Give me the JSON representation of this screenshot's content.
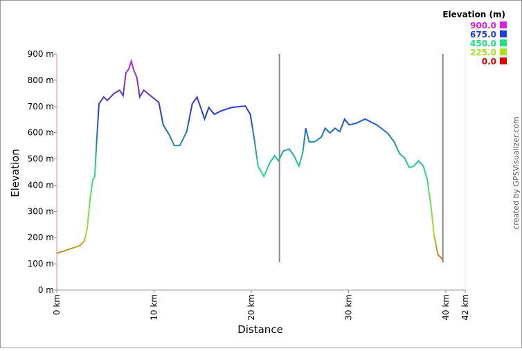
{
  "chart_data": {
    "type": "line",
    "x_label": "Distance",
    "y_label": "Elevation",
    "credit": "created by GPSVisualizer.com",
    "legend_title": "Elevation (m)",
    "legend": [
      {
        "value": 900,
        "label": "900.0",
        "color": "#e020e0"
      },
      {
        "value": 675,
        "label": "675.0",
        "color": "#1c3ce0"
      },
      {
        "value": 450,
        "label": "450.0",
        "color": "#20e080"
      },
      {
        "value": 225,
        "label": "225.0",
        "color": "#a8e020"
      },
      {
        "value": 0,
        "label": "0.0",
        "color": "#e00000"
      }
    ],
    "xlim": [
      0,
      42
    ],
    "ylim": [
      0,
      900
    ],
    "xticks": [
      {
        "value": 0,
        "label": "0 km"
      },
      {
        "value": 10,
        "label": "10 km"
      },
      {
        "value": 20,
        "label": "20 km"
      },
      {
        "value": 30,
        "label": "30 km"
      },
      {
        "value": 40,
        "label": "40 km"
      },
      {
        "value": 42,
        "label": "42 km"
      }
    ],
    "yticks": [
      {
        "value": 0,
        "label": "0 m"
      },
      {
        "value": 100,
        "label": "100 m"
      },
      {
        "value": 200,
        "label": "200 m"
      },
      {
        "value": 300,
        "label": "300 m"
      },
      {
        "value": 400,
        "label": "400 m"
      },
      {
        "value": 500,
        "label": "500 m"
      },
      {
        "value": 600,
        "label": "600 m"
      },
      {
        "value": 700,
        "label": "700 m"
      },
      {
        "value": 800,
        "label": "800 m"
      },
      {
        "value": 900,
        "label": "900 m"
      }
    ],
    "markers": [
      22.9,
      39.7
    ],
    "series": [
      {
        "x": [
          0,
          1.28,
          2.35,
          2.84,
          3.13,
          3.41,
          3.7,
          3.9,
          4.12,
          4.34,
          4.83,
          5.19,
          5.9,
          6.47,
          6.82,
          7.11,
          7.39,
          7.67,
          7.88,
          8.24,
          8.53,
          8.95,
          9.81,
          10.5,
          10.94,
          11.58,
          12.08,
          12.65,
          13.36,
          13.93,
          14.42,
          14.92,
          15.2,
          15.63,
          16.2,
          16.9,
          17.97,
          19.39,
          19.9,
          20.3,
          20.7,
          21.3,
          21.9,
          22.4,
          22.8,
          23.3,
          23.9,
          24.4,
          24.9,
          25.3,
          25.6,
          25.95,
          26.5,
          27.2,
          27.6,
          28.1,
          28.6,
          29.1,
          29.6,
          30.06,
          30.8,
          31.7,
          32.9,
          34.0,
          34.7,
          35.25,
          35.75,
          36.25,
          36.7,
          37.2,
          37.7,
          38.1,
          38.5,
          38.8,
          39.2,
          39.7
        ],
        "values": [
          140,
          156,
          169,
          187,
          235,
          340,
          420,
          433,
          578,
          710,
          736,
          723,
          750,
          762,
          741,
          828,
          842,
          873,
          842,
          810,
          736,
          762,
          736,
          715,
          630,
          591,
          551,
          551,
          604,
          710,
          736,
          683,
          652,
          696,
          670,
          683,
          696,
          702,
          670,
          578,
          472,
          433,
          485,
          512,
          493,
          530,
          538,
          512,
          472,
          525,
          617,
          565,
          565,
          583,
          617,
          599,
          617,
          604,
          652,
          630,
          636,
          652,
          630,
          599,
          565,
          520,
          504,
          467,
          472,
          493,
          472,
          420,
          314,
          208,
          135,
          116
        ]
      }
    ]
  }
}
